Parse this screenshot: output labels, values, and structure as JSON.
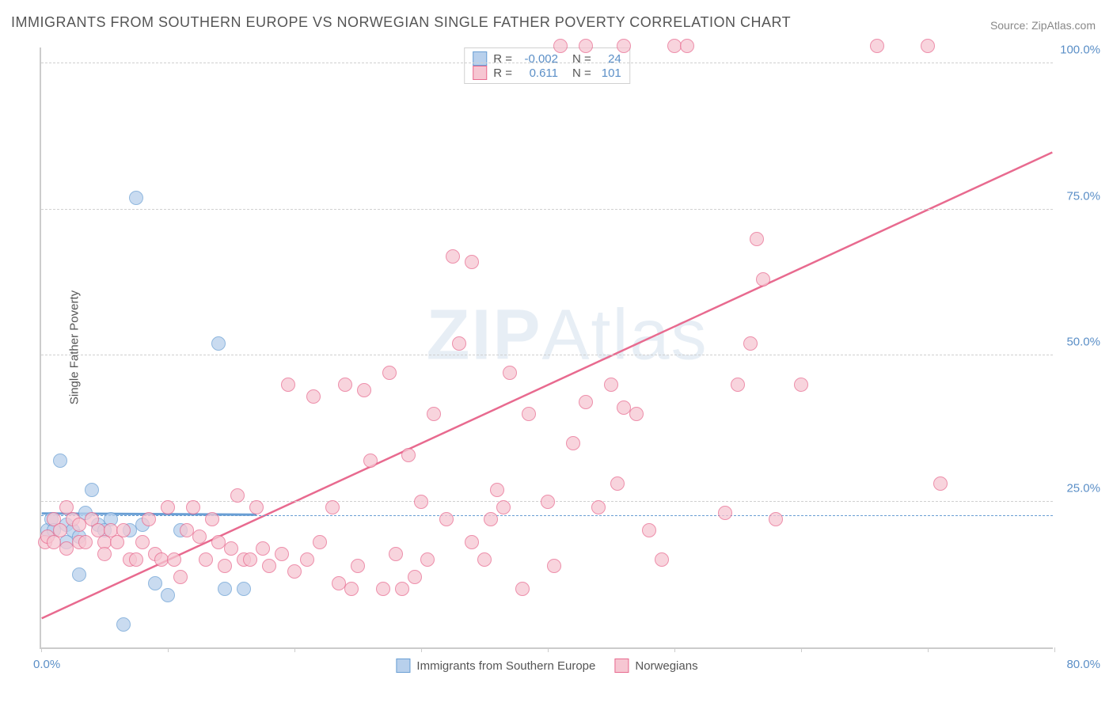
{
  "title": "IMMIGRANTS FROM SOUTHERN EUROPE VS NORWEGIAN SINGLE FATHER POVERTY CORRELATION CHART",
  "source_label": "Source: ",
  "source_name": "ZipAtlas.com",
  "y_axis_title": "Single Father Poverty",
  "watermark_bold": "ZIP",
  "watermark_rest": "Atlas",
  "chart": {
    "type": "scatter",
    "xlim": [
      0,
      80
    ],
    "ylim": [
      0,
      103
    ],
    "x_tick_labels": [
      "0.0%",
      "80.0%"
    ],
    "x_tick_positions": [
      0,
      10,
      20,
      30,
      40,
      50,
      60,
      70,
      80
    ],
    "y_gridlines": [
      25,
      50,
      75,
      100
    ],
    "y_tick_labels": [
      "25.0%",
      "50.0%",
      "75.0%",
      "100.0%"
    ],
    "reference_line_y": 22.5,
    "background_color": "#ffffff",
    "grid_color": "#d0d0d0",
    "axis_color": "#cccccc",
    "label_color": "#5b8fc7",
    "title_color": "#555555"
  },
  "series": [
    {
      "name": "Immigrants from Southern Europe",
      "fill_color": "#b8d0ec",
      "stroke_color": "#6a9fd4",
      "marker_radius": 9,
      "R_label": "R = ",
      "R_value": "-0.002",
      "N_label": "N = ",
      "N_value": "24",
      "trend": {
        "x1": 0,
        "y1": 23,
        "x2": 17,
        "y2": 22.8,
        "width": 3
      },
      "points": [
        [
          0.5,
          20
        ],
        [
          0.8,
          22
        ],
        [
          1,
          20
        ],
        [
          1.5,
          32
        ],
        [
          2,
          21
        ],
        [
          2,
          18
        ],
        [
          2.5,
          20
        ],
        [
          3,
          12.5
        ],
        [
          3,
          19
        ],
        [
          3.5,
          23
        ],
        [
          4,
          27
        ],
        [
          4.5,
          21
        ],
        [
          5,
          20
        ],
        [
          5.5,
          22
        ],
        [
          6.5,
          4
        ],
        [
          7,
          20
        ],
        [
          7.5,
          77
        ],
        [
          8,
          21
        ],
        [
          9,
          11
        ],
        [
          10,
          9
        ],
        [
          11,
          20
        ],
        [
          14,
          52
        ],
        [
          14.5,
          10
        ],
        [
          16,
          10
        ]
      ]
    },
    {
      "name": "Norwegians",
      "fill_color": "#f6c6d2",
      "stroke_color": "#e86a8f",
      "marker_radius": 9,
      "R_label": "R = ",
      "R_value": "0.611",
      "N_label": "N = ",
      "N_value": "101",
      "trend": {
        "x1": 0,
        "y1": 5,
        "x2": 80,
        "y2": 85,
        "width": 2.5
      },
      "points": [
        [
          0.3,
          18
        ],
        [
          0.5,
          19
        ],
        [
          1,
          18
        ],
        [
          1,
          22
        ],
        [
          1.5,
          20
        ],
        [
          2,
          17
        ],
        [
          2,
          24
        ],
        [
          2.5,
          22
        ],
        [
          3,
          18
        ],
        [
          3,
          21
        ],
        [
          3.5,
          18
        ],
        [
          4,
          22
        ],
        [
          4.5,
          20
        ],
        [
          5,
          18
        ],
        [
          5,
          16
        ],
        [
          5.5,
          20
        ],
        [
          6,
          18
        ],
        [
          6.5,
          20
        ],
        [
          7,
          15
        ],
        [
          7.5,
          15
        ],
        [
          8,
          18
        ],
        [
          8.5,
          22
        ],
        [
          9,
          16
        ],
        [
          9.5,
          15
        ],
        [
          10,
          24
        ],
        [
          10.5,
          15
        ],
        [
          11,
          12
        ],
        [
          11.5,
          20
        ],
        [
          12,
          24
        ],
        [
          12.5,
          19
        ],
        [
          13,
          15
        ],
        [
          13.5,
          22
        ],
        [
          14,
          18
        ],
        [
          14.5,
          14
        ],
        [
          15,
          17
        ],
        [
          15.5,
          26
        ],
        [
          16,
          15
        ],
        [
          16.5,
          15
        ],
        [
          17,
          24
        ],
        [
          17.5,
          17
        ],
        [
          18,
          14
        ],
        [
          19,
          16
        ],
        [
          19.5,
          45
        ],
        [
          20,
          13
        ],
        [
          21,
          15
        ],
        [
          21.5,
          43
        ],
        [
          22,
          18
        ],
        [
          23,
          24
        ],
        [
          23.5,
          11
        ],
        [
          24,
          45
        ],
        [
          24.5,
          10
        ],
        [
          25,
          14
        ],
        [
          25.5,
          44
        ],
        [
          26,
          32
        ],
        [
          27,
          10
        ],
        [
          27.5,
          47
        ],
        [
          28,
          16
        ],
        [
          28.5,
          10
        ],
        [
          29,
          33
        ],
        [
          29.5,
          12
        ],
        [
          30,
          25
        ],
        [
          30.5,
          15
        ],
        [
          31,
          40
        ],
        [
          32,
          22
        ],
        [
          32.5,
          67
        ],
        [
          33,
          52
        ],
        [
          34,
          66
        ],
        [
          34,
          18
        ],
        [
          35,
          15
        ],
        [
          35.5,
          22
        ],
        [
          36,
          27
        ],
        [
          36.5,
          24
        ],
        [
          37,
          47
        ],
        [
          38,
          10
        ],
        [
          38.5,
          40
        ],
        [
          40,
          25
        ],
        [
          40.5,
          14
        ],
        [
          41,
          103
        ],
        [
          42,
          35
        ],
        [
          43,
          42
        ],
        [
          43,
          103
        ],
        [
          44,
          24
        ],
        [
          45,
          45
        ],
        [
          45.5,
          28
        ],
        [
          46,
          41
        ],
        [
          46,
          103
        ],
        [
          47,
          40
        ],
        [
          48,
          20
        ],
        [
          49,
          15
        ],
        [
          50,
          103
        ],
        [
          51,
          103
        ],
        [
          54,
          23
        ],
        [
          55,
          45
        ],
        [
          56,
          52
        ],
        [
          56.5,
          70
        ],
        [
          57,
          63
        ],
        [
          58,
          22
        ],
        [
          60,
          45
        ],
        [
          66,
          103
        ],
        [
          70,
          103
        ],
        [
          71,
          28
        ]
      ]
    }
  ],
  "legend_bottom": [
    {
      "swatch_fill": "#b8d0ec",
      "swatch_stroke": "#6a9fd4",
      "label": "Immigrants from Southern Europe"
    },
    {
      "swatch_fill": "#f6c6d2",
      "swatch_stroke": "#e86a8f",
      "label": "Norwegians"
    }
  ]
}
